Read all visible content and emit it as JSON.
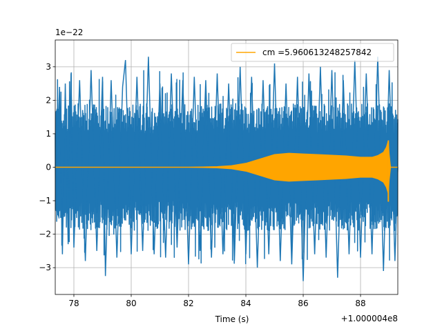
{
  "chart_data": {
    "type": "line",
    "xlabel": "Time (s)",
    "ylabel": "",
    "x_offset_label": "+1.000004e8",
    "y_exponent_label": "1e−22",
    "xlim": [
      77.35,
      89.3
    ],
    "ylim": [
      -3.8,
      3.8
    ],
    "x_ticks": [
      78,
      80,
      82,
      84,
      86,
      88
    ],
    "y_ticks": [
      -3,
      -2,
      -1,
      0,
      1,
      2,
      3
    ],
    "grid": true,
    "legend_position": "top-right",
    "series": [
      {
        "id": "strain-noise",
        "description_visible": false,
        "color": "#1f77b4",
        "points": [
          [
            77.4,
            0.0
          ],
          [
            77.5,
            2.4
          ],
          [
            77.6,
            -2.6
          ],
          [
            77.7,
            2.5
          ],
          [
            77.8,
            -2.3
          ],
          [
            77.9,
            2.8
          ],
          [
            78.0,
            -2.4
          ],
          [
            78.2,
            2.6
          ],
          [
            78.4,
            -2.8
          ],
          [
            78.6,
            2.9
          ],
          [
            78.8,
            -2.5
          ],
          [
            79.0,
            2.7
          ],
          [
            79.1,
            -3.25
          ],
          [
            79.3,
            2.6
          ],
          [
            79.5,
            -2.7
          ],
          [
            79.7,
            2.4
          ],
          [
            79.8,
            3.2
          ],
          [
            80.0,
            -2.6
          ],
          [
            80.2,
            2.7
          ],
          [
            80.4,
            -2.5
          ],
          [
            80.6,
            3.3
          ],
          [
            80.8,
            -2.6
          ],
          [
            81.0,
            2.5
          ],
          [
            81.2,
            -2.7
          ],
          [
            81.4,
            2.8
          ],
          [
            81.6,
            -2.4
          ],
          [
            81.8,
            2.6
          ],
          [
            82.0,
            -2.9
          ],
          [
            82.2,
            2.7
          ],
          [
            82.4,
            -2.5
          ],
          [
            82.6,
            2.6
          ],
          [
            82.8,
            -2.7
          ],
          [
            83.0,
            2.8
          ],
          [
            83.2,
            -2.6
          ],
          [
            83.4,
            2.5
          ],
          [
            83.6,
            -2.8
          ],
          [
            83.8,
            3.0
          ],
          [
            84.0,
            -2.6
          ],
          [
            84.2,
            2.7
          ],
          [
            84.4,
            -3.0
          ],
          [
            84.6,
            2.6
          ],
          [
            84.8,
            -2.6
          ],
          [
            85.0,
            3.1
          ],
          [
            85.2,
            -2.8
          ],
          [
            85.4,
            2.5
          ],
          [
            85.6,
            -2.9
          ],
          [
            85.8,
            2.7
          ],
          [
            86.0,
            -3.4
          ],
          [
            86.2,
            2.8
          ],
          [
            86.4,
            -2.6
          ],
          [
            86.6,
            3.0
          ],
          [
            86.8,
            -2.7
          ],
          [
            87.0,
            2.9
          ],
          [
            87.2,
            -3.3
          ],
          [
            87.4,
            2.6
          ],
          [
            87.6,
            -2.6
          ],
          [
            87.8,
            3.2
          ],
          [
            88.0,
            -2.7
          ],
          [
            88.2,
            2.8
          ],
          [
            88.4,
            -2.6
          ],
          [
            88.6,
            3.3
          ],
          [
            88.8,
            -3.1
          ],
          [
            89.0,
            2.9
          ],
          [
            89.2,
            -2.8
          ],
          [
            89.3,
            0.0
          ]
        ]
      },
      {
        "name": "cm =5.960613248257842",
        "color": "#ffa500",
        "envelope": [
          [
            77.4,
            0.0
          ],
          [
            82.0,
            0.0
          ],
          [
            83.0,
            0.02
          ],
          [
            83.5,
            0.05
          ],
          [
            84.0,
            0.12
          ],
          [
            84.5,
            0.25
          ],
          [
            85.0,
            0.38
          ],
          [
            85.5,
            0.42
          ],
          [
            86.0,
            0.4
          ],
          [
            86.5,
            0.38
          ],
          [
            87.0,
            0.36
          ],
          [
            87.5,
            0.34
          ],
          [
            88.0,
            0.3
          ],
          [
            88.4,
            0.3
          ],
          [
            88.6,
            0.35
          ],
          [
            88.8,
            0.45
          ],
          [
            88.9,
            0.6
          ],
          [
            88.97,
            0.8
          ],
          [
            89.0,
            0.4
          ],
          [
            89.05,
            0.0
          ],
          [
            89.3,
            0.0
          ]
        ],
        "peak_min": -1.03
      }
    ]
  }
}
